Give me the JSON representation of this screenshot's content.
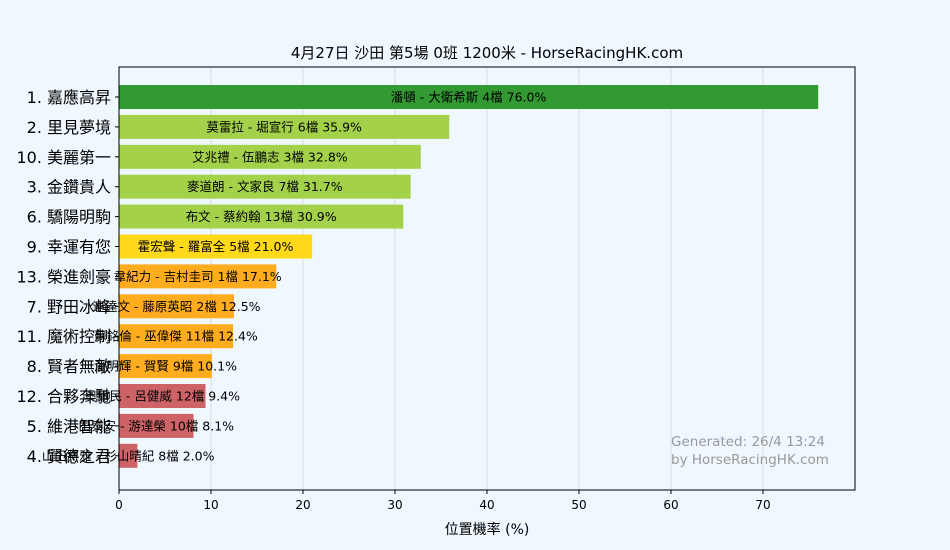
{
  "chart_data": {
    "type": "bar",
    "orientation": "horizontal",
    "title": "4月27日  沙田  第5場  0班  1200米 - HorseRacingHK.com",
    "xlabel": "位置機率 (%)",
    "ylabel": "",
    "xlim": [
      0,
      80
    ],
    "xticks": [
      0,
      10,
      20,
      30,
      40,
      50,
      60,
      70
    ],
    "grid": "vertical",
    "categories": [
      "1. 嘉應高昇",
      "2. 里見夢境",
      "10. 美麗第一",
      "3. 金鑽貴人",
      "6. 驕陽明駒",
      "9. 幸運有您",
      "13. 榮進劍豪",
      "7. 野田冰峰",
      "11. 魔術控制",
      "8. 賢者無敵",
      "12. 合夥奔馳",
      "5. 維港智能",
      "4. 賢德之君"
    ],
    "values": [
      76.0,
      35.9,
      32.8,
      31.7,
      30.9,
      21.0,
      17.1,
      12.5,
      12.4,
      10.1,
      9.4,
      8.1,
      2.0
    ],
    "labels": [
      "潘頓 - 大衛希斯 4檔  76.0%",
      "莫雷拉 - 堀宣行 6檔  35.9%",
      "艾兆禮 - 伍鵬志 3檔  32.8%",
      "麥道朗 - 文家良 7檔  31.7%",
      "布文 - 蔡約翰 13檔  30.9%",
      "霍宏聲 - 羅富全 5檔  21.0%",
      "韋紀力 - 吉村圭司 1檔  17.1%",
      "連達文 - 藤原英昭 2檔  12.5%",
      "蘇銘倫 - 巫偉傑 11檔  12.4%",
      "潘明輝 - 賀賢 9檔  10.1%",
      "奧爾民 - 呂健威 12檔  9.4%",
      "田泰安 - 游達榮 10檔  8.1%",
      "山田將雅 - 杉山晴紀 8檔  2.0%"
    ],
    "colors": [
      "#339933",
      "#a3d14a",
      "#a3d14a",
      "#a3d14a",
      "#a3d14a",
      "#ffd91a",
      "#ffad1f",
      "#ffad1f",
      "#ffad1f",
      "#ffad1f",
      "#cd6366",
      "#cd6366",
      "#cd6366"
    ]
  },
  "watermark": {
    "line1": "Generated: 26/4 13:24",
    "line2": "by HorseRacingHK.com"
  }
}
